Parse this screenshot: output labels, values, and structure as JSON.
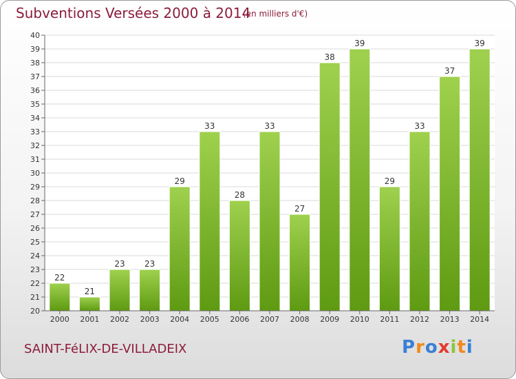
{
  "header": {
    "title": "Subventions Versées 2000 à 2014",
    "subtitle": "(en milliers d'€)"
  },
  "footer": {
    "commune": "SAINT-FéLIX-DE-VILLADEIX",
    "logo_text": "Proxiti"
  },
  "colors": {
    "title": "#8b1c3a",
    "bar_top": "#9fd14e",
    "bar_bottom": "#5e9a12",
    "grid": "#d9d9d9",
    "axis": "#666666",
    "logo_letters": [
      "#3a7fd6",
      "#f08a1c",
      "#3a7fd6",
      "#e23a2e",
      "#8cc63f",
      "#f08a1c",
      "#3a7fd6"
    ]
  },
  "chart_data": {
    "type": "bar",
    "categories": [
      "2000",
      "2001",
      "2002",
      "2003",
      "2004",
      "2005",
      "2006",
      "2007",
      "2008",
      "2009",
      "2010",
      "2011",
      "2012",
      "2013",
      "2014"
    ],
    "values": [
      22,
      21,
      23,
      23,
      29,
      33,
      28,
      33,
      27,
      38,
      39,
      29,
      33,
      37,
      39
    ],
    "title": "Subventions Versées 2000 à 2014",
    "xlabel": "",
    "ylabel": "",
    "ylim": [
      20,
      40
    ],
    "yticks": [
      20,
      21,
      22,
      23,
      24,
      25,
      26,
      27,
      28,
      29,
      30,
      31,
      32,
      33,
      34,
      35,
      36,
      37,
      38,
      39,
      40
    ],
    "grid": true,
    "data_labels": true
  }
}
